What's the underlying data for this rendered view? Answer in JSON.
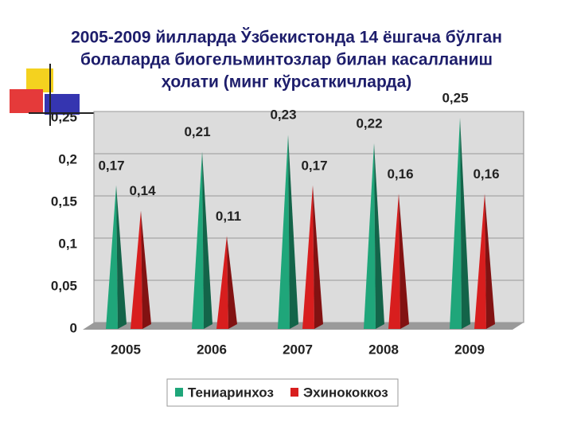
{
  "chart_data": {
    "type": "pyramid",
    "title": [
      "2005-2009 йилларда Ўзбекистонда 14 ёшгача бўлган",
      "болаларда биогельминтозлар билан касалланиш",
      "ҳолати (минг кўрсаткичларда)"
    ],
    "categories": [
      "2005",
      "2006",
      "2007",
      "2008",
      "2009"
    ],
    "series": [
      {
        "name": "Тениаринхоз",
        "color": "#1fa67a",
        "values": [
          0.17,
          0.21,
          0.23,
          0.22,
          0.25
        ],
        "value_labels": [
          "0,17",
          "0,21",
          "0,23",
          "0,22",
          "0,25"
        ]
      },
      {
        "name": "Эхинококкоз",
        "color": "#d81e1e",
        "values": [
          0.14,
          0.11,
          0.17,
          0.16,
          0.16
        ],
        "value_labels": [
          "0,14",
          "0,11",
          "0,17",
          "0,16",
          "0,16"
        ]
      }
    ],
    "ylim": [
      0,
      0.25
    ],
    "yticks": [
      0,
      {
        "value": 0.05,
        "label": "0,05"
      },
      {
        "value": 0.1,
        "label": "0,1"
      },
      {
        "value": 0.15,
        "label": "0,15"
      },
      {
        "value": 0.2,
        "label": "0,2"
      },
      {
        "value": 0.25,
        "label": "0,25"
      }
    ],
    "grid": true,
    "legend": "bottom"
  }
}
